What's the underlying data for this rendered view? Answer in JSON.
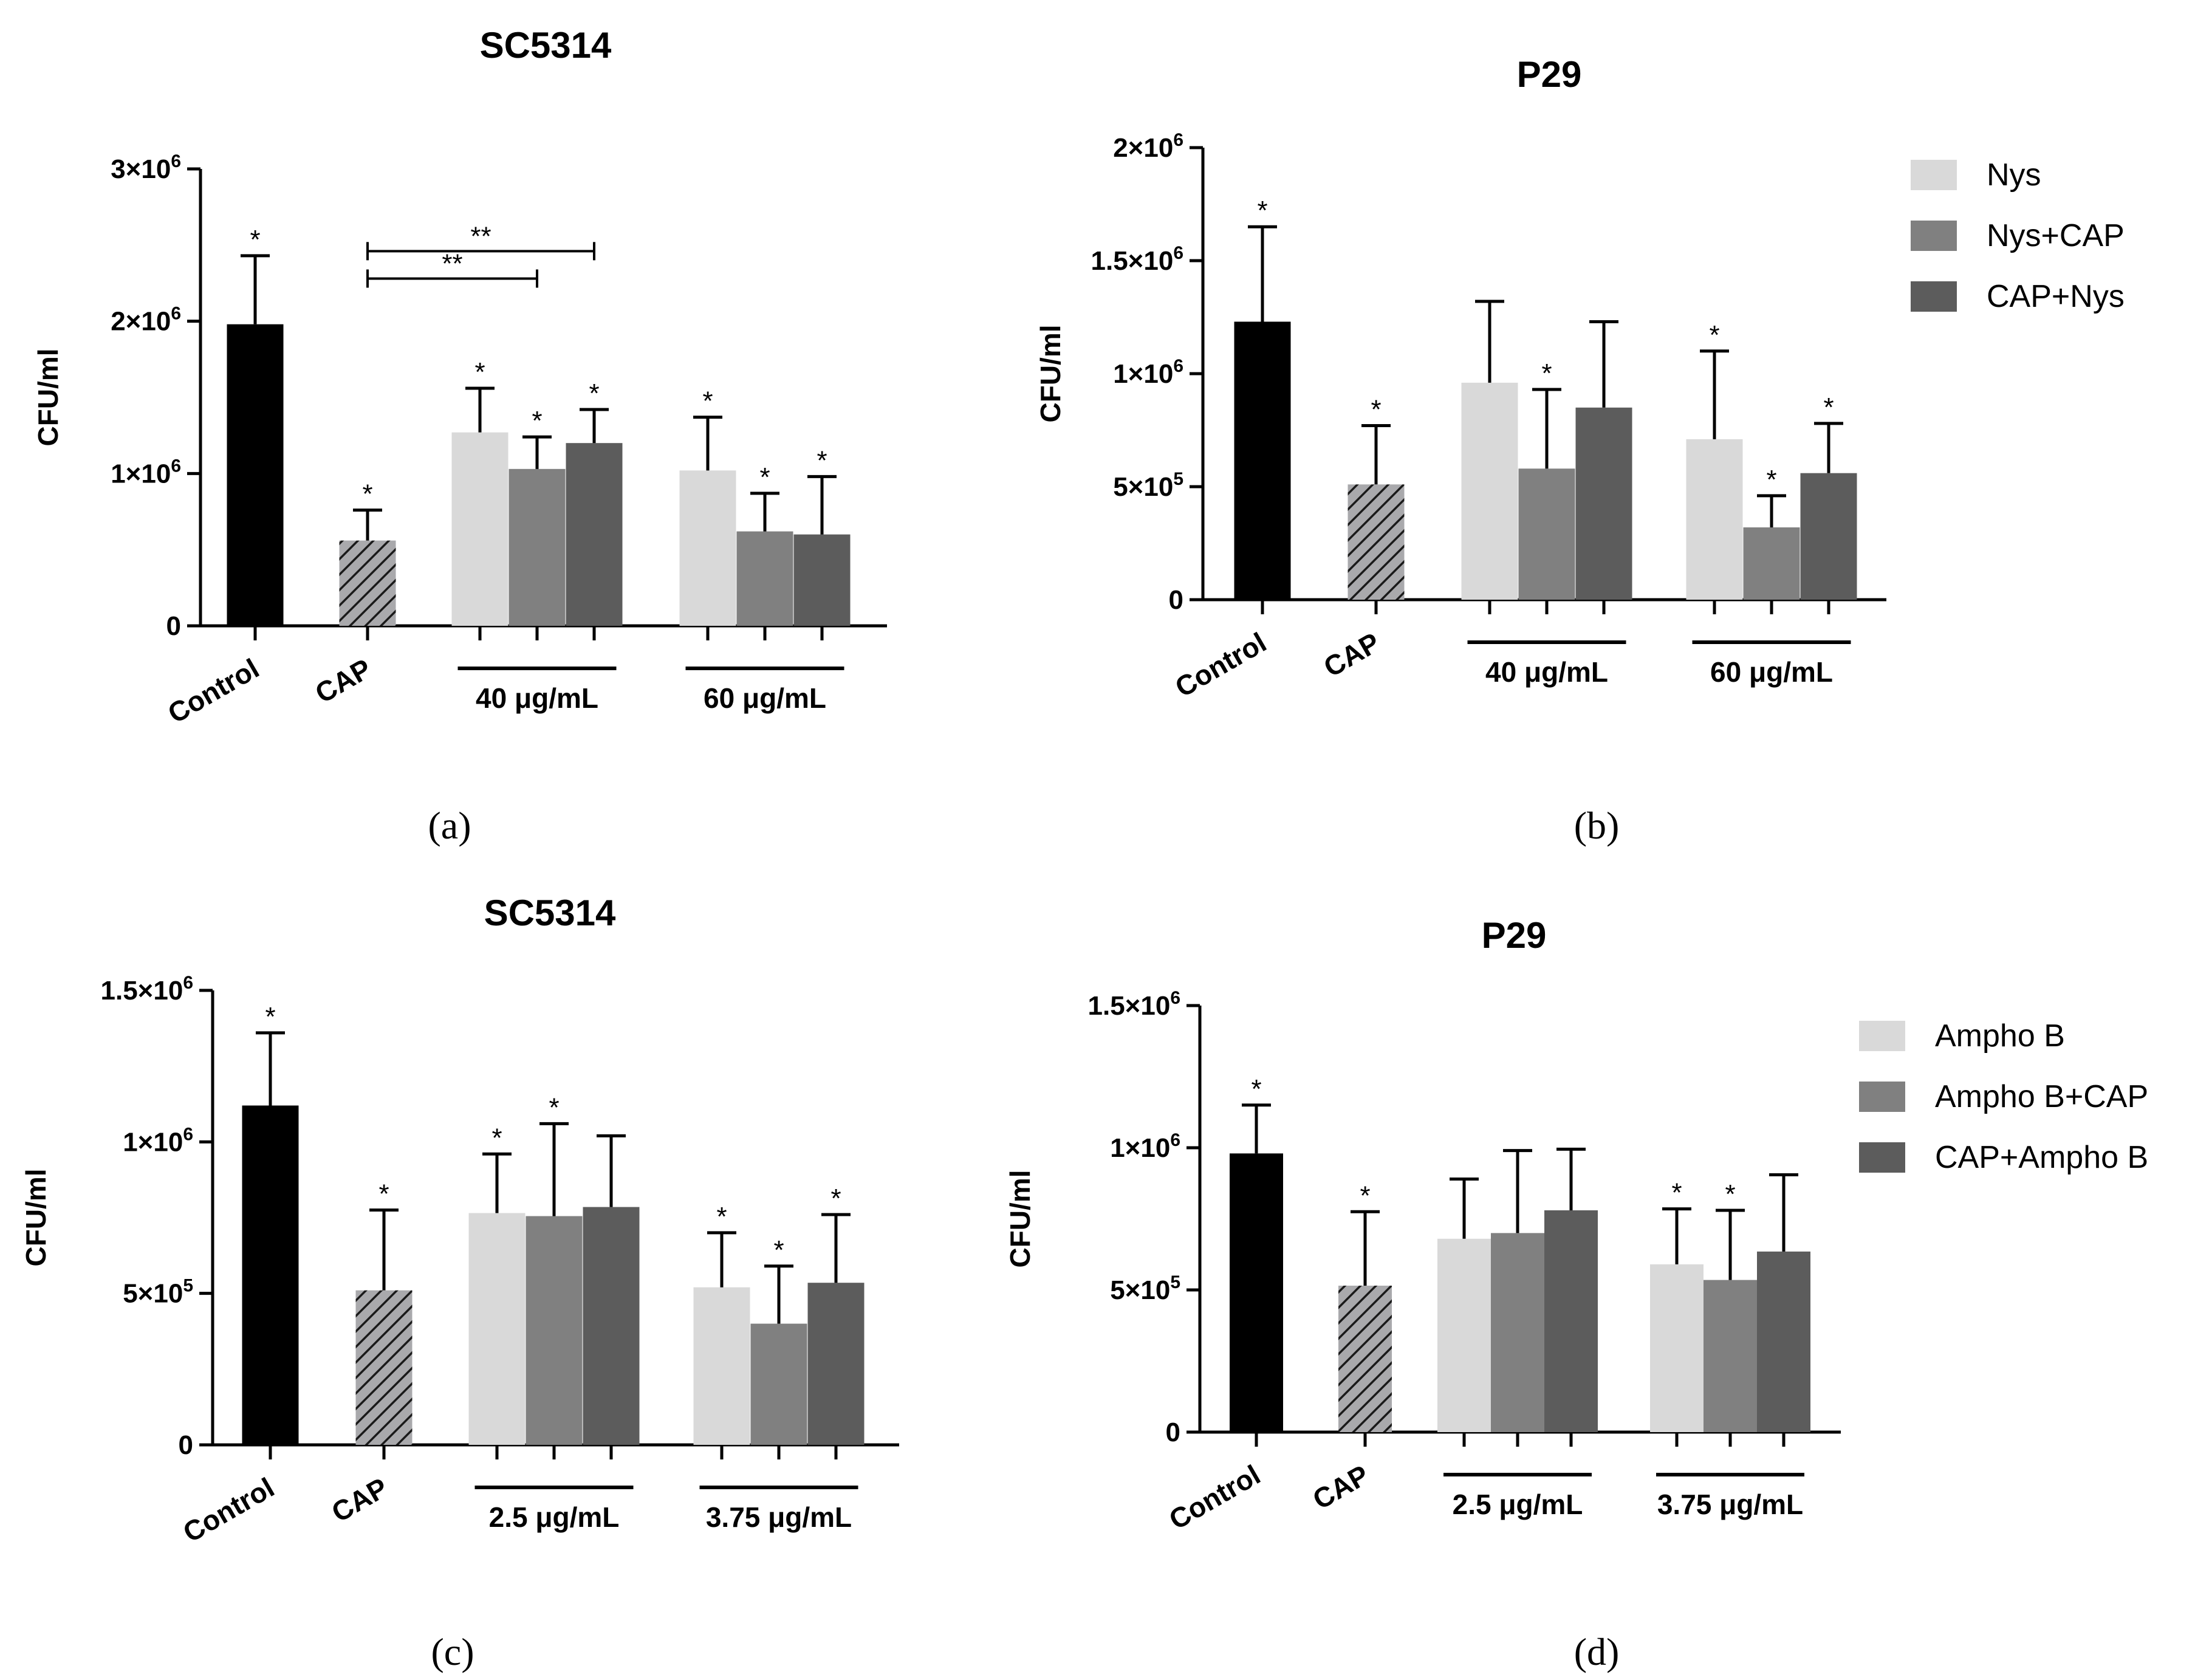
{
  "figure": {
    "captions": [
      "(a)",
      "(b)",
      "(c)",
      "(d)"
    ]
  },
  "colors": {
    "control": "#000000",
    "cap_fill": "#a9a9ac",
    "cap_hatch": "#1a1a1a",
    "series1": "#d9d9d9",
    "series2": "#808080",
    "series3": "#5c5c5c",
    "axis": "#000000"
  },
  "chart_data": [
    {
      "id": "a",
      "type": "bar",
      "title": "SC5314",
      "ylabel": "CFU/ml",
      "ylim": [
        0,
        3000000
      ],
      "yticks": [
        {
          "value": 0,
          "label": "0",
          "exp": ""
        },
        {
          "value": 1000000,
          "label": "1×10",
          "exp": "6"
        },
        {
          "value": 2000000,
          "label": "2×10",
          "exp": "6"
        },
        {
          "value": 3000000,
          "label": "3×10",
          "exp": "6"
        }
      ],
      "controls": [
        {
          "label": "Control",
          "value": 1980000,
          "err": 450000,
          "star": "*"
        },
        {
          "label": "CAP",
          "value": 560000,
          "err": 200000,
          "star": "*"
        }
      ],
      "group_labels": [
        "40 μg/mL",
        "60 μg/mL"
      ],
      "series": [
        {
          "name": "Nys",
          "values": [
            1270000,
            1020000
          ],
          "errors": [
            290000,
            350000
          ],
          "stars": [
            "*",
            "*"
          ]
        },
        {
          "name": "Nys+CAP",
          "values": [
            1030000,
            620000
          ],
          "errors": [
            210000,
            250000
          ],
          "stars": [
            "*",
            "*"
          ]
        },
        {
          "name": "CAP+Nys",
          "values": [
            1200000,
            600000
          ],
          "errors": [
            220000,
            380000
          ],
          "stars": [
            "*",
            "*"
          ]
        }
      ],
      "brackets": [
        {
          "from": "CAP",
          "to": "40 μg/mL Nys+CAP",
          "label": "**"
        },
        {
          "from": "CAP",
          "to": "40 μg/mL CAP+Nys",
          "label": "**"
        }
      ]
    },
    {
      "id": "b",
      "type": "bar",
      "title": "P29",
      "ylabel": "CFU/ml",
      "ylim": [
        0,
        2000000
      ],
      "yticks": [
        {
          "value": 0,
          "label": "0",
          "exp": ""
        },
        {
          "value": 500000,
          "label": "5×10",
          "exp": "5"
        },
        {
          "value": 1000000,
          "label": "1×10",
          "exp": "6"
        },
        {
          "value": 1500000,
          "label": "1.5×10",
          "exp": "6"
        },
        {
          "value": 2000000,
          "label": "2×10",
          "exp": "6"
        }
      ],
      "controls": [
        {
          "label": "Control",
          "value": 1230000,
          "err": 420000,
          "star": "*"
        },
        {
          "label": "CAP",
          "value": 510000,
          "err": 260000,
          "star": "*"
        }
      ],
      "group_labels": [
        "40 μg/mL",
        "60 μg/mL"
      ],
      "series": [
        {
          "name": "Nys",
          "values": [
            960000,
            710000
          ],
          "errors": [
            360000,
            390000
          ],
          "stars": [
            "",
            "*"
          ]
        },
        {
          "name": "Nys+CAP",
          "values": [
            580000,
            320000
          ],
          "errors": [
            350000,
            140000
          ],
          "stars": [
            "*",
            "*"
          ]
        },
        {
          "name": "CAP+Nys",
          "values": [
            850000,
            560000
          ],
          "errors": [
            380000,
            220000
          ],
          "stars": [
            "",
            "*"
          ]
        }
      ],
      "legend": [
        "Nys",
        "Nys+CAP",
        "CAP+Nys"
      ]
    },
    {
      "id": "c",
      "type": "bar",
      "title": "SC5314",
      "ylabel": "CFU/ml",
      "ylim": [
        0,
        1500000
      ],
      "yticks": [
        {
          "value": 0,
          "label": "0",
          "exp": ""
        },
        {
          "value": 500000,
          "label": "5×10",
          "exp": "5"
        },
        {
          "value": 1000000,
          "label": "1×10",
          "exp": "6"
        },
        {
          "value": 1500000,
          "label": "1.5×10",
          "exp": "6"
        }
      ],
      "controls": [
        {
          "label": "Control",
          "value": 1120000,
          "err": 240000,
          "star": "*"
        },
        {
          "label": "CAP",
          "value": 510000,
          "err": 265000,
          "star": "*"
        }
      ],
      "group_labels": [
        "2.5 μg/mL",
        "3.75 μg/mL"
      ],
      "series": [
        {
          "name": "Ampho B",
          "values": [
            765000,
            520000
          ],
          "errors": [
            195000,
            180000
          ],
          "stars": [
            "*",
            "*"
          ]
        },
        {
          "name": "Ampho B+CAP",
          "values": [
            755000,
            400000
          ],
          "errors": [
            305000,
            190000
          ],
          "stars": [
            "*",
            "*"
          ]
        },
        {
          "name": "CAP+Ampho B",
          "values": [
            785000,
            535000
          ],
          "errors": [
            235000,
            225000
          ],
          "stars": [
            "",
            "*"
          ]
        }
      ]
    },
    {
      "id": "d",
      "type": "bar",
      "title": "P29",
      "ylabel": "CFU/ml",
      "ylim": [
        0,
        1500000
      ],
      "yticks": [
        {
          "value": 0,
          "label": "0",
          "exp": ""
        },
        {
          "value": 500000,
          "label": "5×10",
          "exp": "5"
        },
        {
          "value": 1000000,
          "label": "1×10",
          "exp": "6"
        },
        {
          "value": 1500000,
          "label": "1.5×10",
          "exp": "6"
        }
      ],
      "controls": [
        {
          "label": "Control",
          "value": 980000,
          "err": 170000,
          "star": "*"
        },
        {
          "label": "CAP",
          "value": 515000,
          "err": 260000,
          "star": "*"
        }
      ],
      "group_labels": [
        "2.5 μg/mL",
        "3.75 μg/mL"
      ],
      "series": [
        {
          "name": "Ampho B",
          "values": [
            680000,
            590000
          ],
          "errors": [
            210000,
            195000
          ],
          "stars": [
            "",
            "*"
          ]
        },
        {
          "name": "Ampho B+CAP",
          "values": [
            700000,
            535000
          ],
          "errors": [
            290000,
            245000
          ],
          "stars": [
            "",
            "*"
          ]
        },
        {
          "name": "CAP+Ampho B",
          "values": [
            780000,
            635000
          ],
          "errors": [
            215000,
            270000
          ],
          "stars": [
            "",
            ""
          ]
        }
      ],
      "legend": [
        "Ampho B",
        "Ampho B+CAP",
        "CAP+Ampho B"
      ]
    }
  ]
}
